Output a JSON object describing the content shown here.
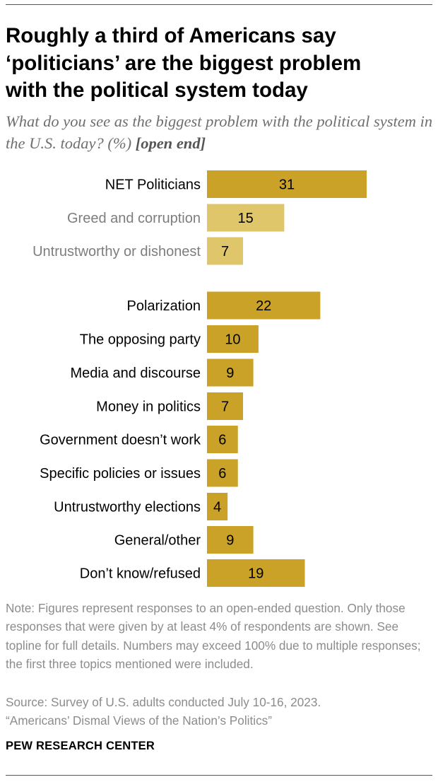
{
  "title": "Roughly a third of Americans say\n‘politicians’ are the biggest problem\nwith the political system today",
  "subtitle": {
    "text": "What do you see as the biggest problem with the political system in the U.S. today? (%)",
    "tag": "[open end]"
  },
  "colors": {
    "main": "#c9a227",
    "sub": "#e0c66a",
    "sub_text": "#7d7d7d"
  },
  "chart_data": {
    "type": "bar",
    "orientation": "horizontal",
    "categories": [
      "NET Politicians",
      "Greed and corruption",
      "Untrustworthy or dishonest",
      "Polarization",
      "The opposing party",
      "Media and discourse",
      "Money in politics",
      "Government doesn’t work",
      "Specific policies or issues",
      "Untrustworthy elections",
      "General/other",
      "Don’t know/refused"
    ],
    "values": [
      31,
      15,
      7,
      22,
      10,
      9,
      7,
      6,
      6,
      4,
      9,
      19
    ],
    "subcategory_of_first": [
      "Greed and corruption",
      "Untrustworthy or dishonest"
    ],
    "data_labels": true,
    "xlim": [
      0,
      31
    ],
    "grid": false,
    "legend": "none"
  },
  "note": "Note: Figures represent responses to an open-ended question. Only those responses that were given by at least 4% of respondents are shown. See topline for full details. Numbers may exceed 100% due to multiple responses; the first three topics mentioned were included.",
  "source": {
    "line1": "Source: Survey of U.S. adults conducted July 10-16, 2023.",
    "line2": "“Americans’ Dismal Views of the Nation’s Politics”"
  },
  "brand": "PEW RESEARCH CENTER"
}
